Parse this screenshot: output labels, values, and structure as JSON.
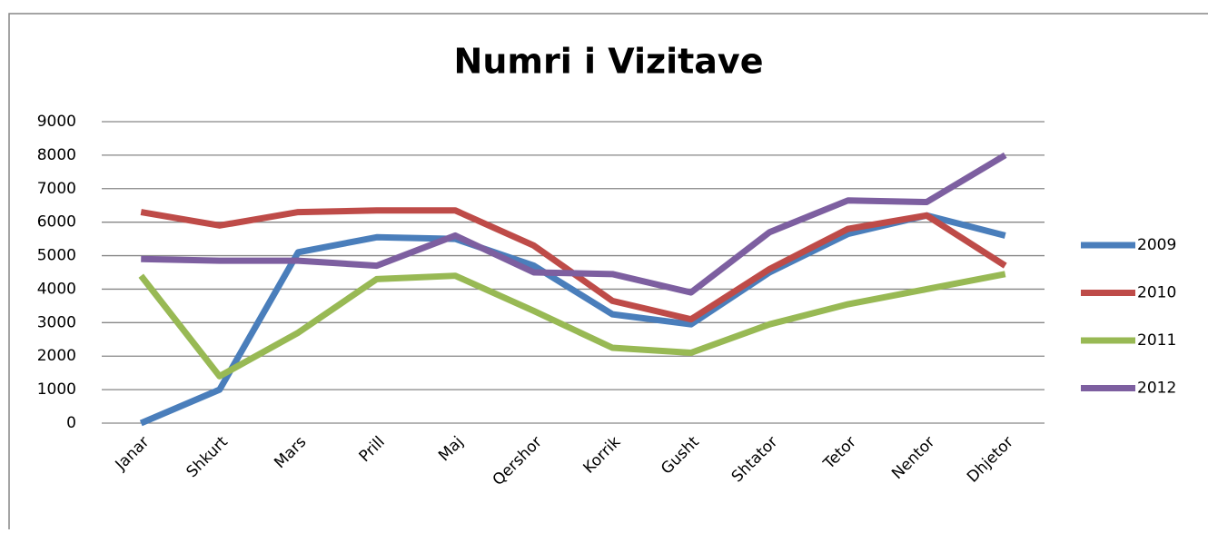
{
  "chart_data": {
    "type": "line",
    "title": "Numri i Vizitave",
    "categories": [
      "Janar",
      "Shkurt",
      "Mars",
      "Prill",
      "Maj",
      "Qershor",
      "Korrik",
      "Gusht",
      "Shtator",
      "Tetor",
      "Nentor",
      "Dhjetor"
    ],
    "series": [
      {
        "name": "2009",
        "color": "#4a7ebb",
        "values": [
          0,
          1000,
          5100,
          5550,
          5500,
          4700,
          3250,
          2950,
          4500,
          5650,
          6200,
          5600
        ]
      },
      {
        "name": "2010",
        "color": "#be4b48",
        "values": [
          6300,
          5900,
          6300,
          6350,
          6350,
          5300,
          3650,
          3100,
          4600,
          5800,
          6200,
          4700
        ]
      },
      {
        "name": "2011",
        "color": "#98b954",
        "values": [
          4400,
          1400,
          2700,
          4300,
          4400,
          3350,
          2250,
          2100,
          2950,
          3550,
          4000,
          4450
        ]
      },
      {
        "name": "2012",
        "color": "#7d5fa0",
        "values": [
          4900,
          4850,
          4850,
          4700,
          5600,
          4500,
          4450,
          3900,
          5700,
          6650,
          6600,
          8000
        ]
      }
    ],
    "ylim": [
      0,
      9000
    ],
    "yticks": [
      0,
      1000,
      2000,
      3000,
      4000,
      5000,
      6000,
      7000,
      8000,
      9000
    ],
    "grid": true,
    "legend": "right"
  }
}
